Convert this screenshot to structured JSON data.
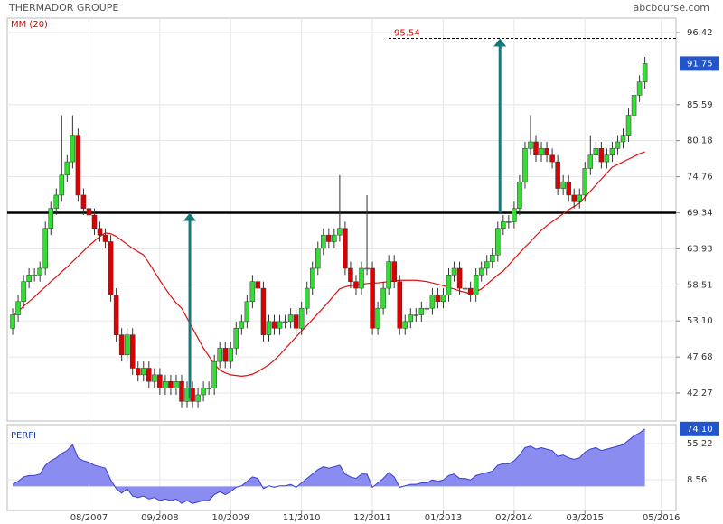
{
  "chart_data": [
    {
      "type": "candlestick",
      "title": "THERMADOR GROUPE",
      "source": "abcbourse.com",
      "xlim": [
        -1,
        121.7
      ],
      "xticks": [
        {
          "value": 14,
          "label": "08/2007"
        },
        {
          "value": 27,
          "label": "09/2008"
        },
        {
          "value": 40,
          "label": "10/2009"
        },
        {
          "value": 53,
          "label": "11/2010"
        },
        {
          "value": 66,
          "label": "12/2011"
        },
        {
          "value": 79,
          "label": "01/2013"
        },
        {
          "value": 92,
          "label": "02/2014"
        },
        {
          "value": 105,
          "label": "03/2015"
        },
        {
          "value": 119,
          "label": "05/2016"
        }
      ],
      "ylim": [
        38.06,
        98.59
      ],
      "yticks": [
        96.42,
        85.59,
        80.18,
        74.76,
        69.34,
        63.93,
        58.51,
        {
          "value": 53.1,
          "label": "53.10"
        },
        47.68,
        42.27
      ],
      "grid": true,
      "up_color": "#33dd33",
      "down_color": "#dd0000",
      "open": [
        52,
        54,
        56,
        59,
        60,
        60,
        61,
        67,
        70,
        72,
        75,
        77,
        81,
        72,
        70,
        69,
        67,
        66,
        65,
        57,
        51,
        48,
        51,
        46,
        45,
        46,
        44,
        45,
        43,
        44,
        43,
        44,
        41,
        43,
        41,
        42,
        43,
        43,
        47,
        49,
        47,
        49,
        52,
        53,
        56,
        59,
        58,
        51,
        53,
        52,
        53,
        53,
        54,
        52,
        55,
        58,
        61,
        64,
        66,
        65,
        66,
        67,
        61,
        59,
        58,
        61,
        61,
        52,
        55,
        58,
        62,
        59,
        52,
        53,
        54,
        54,
        55,
        55,
        57,
        56,
        57,
        60,
        61,
        58,
        58,
        57,
        60,
        61,
        62,
        63,
        67,
        68,
        68,
        70,
        74,
        79,
        80,
        78,
        79,
        78,
        77,
        73,
        74,
        72,
        71,
        72,
        76,
        78,
        79,
        77,
        78,
        79,
        80,
        81,
        84,
        87,
        89
      ],
      "high": [
        55,
        57,
        60,
        61,
        61,
        62,
        68,
        71,
        73,
        84,
        78,
        84,
        82,
        73,
        71,
        70,
        68,
        67,
        66,
        58,
        52,
        52,
        52,
        47,
        47,
        47,
        46,
        46,
        45,
        45,
        45,
        45,
        44,
        44,
        43,
        44,
        44,
        48,
        50,
        50,
        50,
        53,
        54,
        57,
        60,
        60,
        59,
        54,
        54,
        54,
        54,
        55,
        55,
        56,
        59,
        62,
        65,
        67,
        67,
        67,
        75,
        68,
        62,
        60,
        62,
        72,
        62,
        56,
        59,
        63,
        63,
        60,
        54,
        55,
        55,
        56,
        56,
        58,
        58,
        58,
        61,
        62,
        62,
        59,
        59,
        61,
        62,
        63,
        64,
        68,
        69,
        69,
        71,
        75,
        80,
        84,
        81,
        80,
        80,
        79,
        78,
        75,
        75,
        73,
        73,
        77,
        81,
        80,
        80,
        79,
        80,
        81,
        82,
        85,
        88,
        90,
        92.75
      ],
      "low": [
        51,
        53,
        55,
        58,
        59,
        59,
        60,
        66,
        69,
        71,
        74,
        76,
        71,
        69,
        68,
        66,
        65,
        64,
        56,
        50,
        47,
        47,
        45,
        44,
        44,
        43,
        43,
        42,
        42,
        42,
        42,
        40,
        40,
        40,
        40,
        41,
        42,
        42,
        46,
        46,
        46,
        48,
        51,
        52,
        55,
        57,
        50,
        50,
        51,
        51,
        52,
        52,
        51,
        51,
        54,
        57,
        60,
        63,
        64,
        64,
        65,
        60,
        58,
        57,
        57,
        60,
        51,
        51,
        54,
        57,
        58,
        51,
        51,
        52,
        53,
        53,
        54,
        54,
        55,
        55,
        56,
        59,
        57,
        57,
        56,
        56,
        59,
        60,
        61,
        62,
        66,
        67,
        67,
        69,
        73,
        78,
        77,
        77,
        77,
        76,
        72,
        72,
        71,
        70,
        70,
        71,
        75,
        77,
        76,
        76,
        77,
        78,
        79,
        80,
        83,
        86,
        88
      ],
      "close": [
        54,
        56,
        59,
        60,
        60,
        61,
        67,
        70,
        72,
        75,
        77,
        81,
        72,
        70,
        69,
        67,
        66,
        65,
        57,
        51,
        48,
        51,
        46,
        45,
        46,
        44,
        45,
        43,
        44,
        43,
        44,
        41,
        43,
        41,
        42,
        43,
        43,
        47,
        49,
        47,
        49,
        52,
        53,
        56,
        59,
        58,
        51,
        53,
        52,
        53,
        53,
        54,
        52,
        55,
        58,
        61,
        64,
        66,
        65,
        66,
        67,
        61,
        59,
        58,
        61,
        61,
        52,
        55,
        58,
        62,
        59,
        52,
        53,
        54,
        54,
        55,
        55,
        57,
        56,
        57,
        60,
        61,
        58,
        58,
        57,
        60,
        61,
        62,
        63,
        67,
        68,
        68,
        70,
        74,
        79,
        80,
        78,
        79,
        78,
        77,
        73,
        74,
        72,
        71,
        72,
        76,
        78,
        79,
        77,
        78,
        79,
        80,
        81,
        84,
        87,
        89,
        91.75
      ],
      "series": [
        {
          "name": "MM (20)",
          "color": "#e01010",
          "values": [
            53.8,
            54.5,
            55.3,
            56,
            56.7,
            57.5,
            58.2,
            59,
            59.7,
            60.5,
            61.2,
            62,
            62.8,
            63.6,
            64.4,
            65.1,
            65.8,
            66.3,
            66.2,
            65.8,
            65.2,
            64.6,
            64,
            63.5,
            63,
            61.8,
            60.5,
            59.2,
            58,
            56.8,
            55.8,
            55,
            53.5,
            52,
            50.5,
            49,
            47.8,
            46.6,
            45.7,
            45.3,
            45,
            44.9,
            44.8,
            44.9,
            45.1,
            45.5,
            46,
            46.5,
            47.2,
            48,
            48.9,
            49.8,
            50.7,
            51.6,
            52.4,
            53.3,
            54.2,
            55.1,
            56,
            57,
            57.9,
            58.2,
            58.4,
            58.5,
            58.6,
            58.7,
            58.8,
            58.8,
            58.9,
            59,
            59.1,
            59.2,
            59.2,
            59.2,
            59.2,
            59.1,
            59,
            58.8,
            58.6,
            58.4,
            58.1,
            57.9,
            57.6,
            57.4,
            57.2,
            57.5,
            57.9,
            58.6,
            59.3,
            60,
            60.6,
            61.5,
            62.4,
            63.3,
            64.2,
            65,
            65.9,
            66.7,
            67.4,
            68,
            68.6,
            69.2,
            69.8,
            70.3,
            70.8,
            71.7,
            72.6,
            73.5,
            74.4,
            75.3,
            76.2,
            76.6,
            77,
            77.4,
            77.8,
            78.2,
            78.5
          ]
        }
      ],
      "level": 69.34,
      "target": 95.54,
      "arrows": [
        {
          "x": 32.5,
          "from": 41.6,
          "to": 69.34
        },
        {
          "x": 89.4,
          "from": 69.34,
          "to": 95.54
        }
      ]
    },
    {
      "type": "area",
      "name": "PERFI",
      "color": "#8a8cf0",
      "line_color": "#3b3fcf",
      "ylim": [
        -31.1,
        79.7
      ],
      "yticks": [
        55.22,
        8.56
      ],
      "last_label": "74.10",
      "values": [
        2.6,
        6.4,
        12.1,
        14,
        14,
        15.9,
        27.3,
        33,
        36.8,
        42.5,
        46.3,
        53.8,
        36.8,
        33,
        31.1,
        27.3,
        25.4,
        23.5,
        8.3,
        -3.1,
        -8.8,
        -3.1,
        -12.6,
        -14.5,
        -12.6,
        -16.4,
        -14.5,
        -18.3,
        -16.4,
        -18.3,
        -16.4,
        -22.1,
        -18.3,
        -22.1,
        -20.2,
        -18.3,
        -18.3,
        -10.7,
        -6.9,
        -10.7,
        -6.9,
        -1.2,
        0.7,
        6.4,
        12.1,
        10.2,
        -3.1,
        0.7,
        -1.2,
        0.7,
        0.7,
        2.6,
        -1.2,
        4.5,
        10.2,
        15.9,
        21.6,
        25.4,
        23.5,
        25.4,
        27.3,
        15.9,
        12.1,
        10.2,
        15.9,
        15.9,
        -1.2,
        4.5,
        10.2,
        17.8,
        12.1,
        -1.2,
        0.7,
        2.6,
        2.6,
        4.5,
        4.5,
        8.3,
        6.4,
        8.3,
        14,
        15.9,
        10.2,
        10.2,
        8.3,
        14,
        15.9,
        17.8,
        19.7,
        27.3,
        29.2,
        29.2,
        33,
        40.5,
        50,
        51.9,
        48.1,
        50,
        48.1,
        46.3,
        38.7,
        40.5,
        36.8,
        34.9,
        36.8,
        44.3,
        48.1,
        50,
        46.3,
        48.1,
        50,
        51.9,
        53.8,
        59.5,
        65.2,
        69,
        74.1
      ]
    }
  ]
}
